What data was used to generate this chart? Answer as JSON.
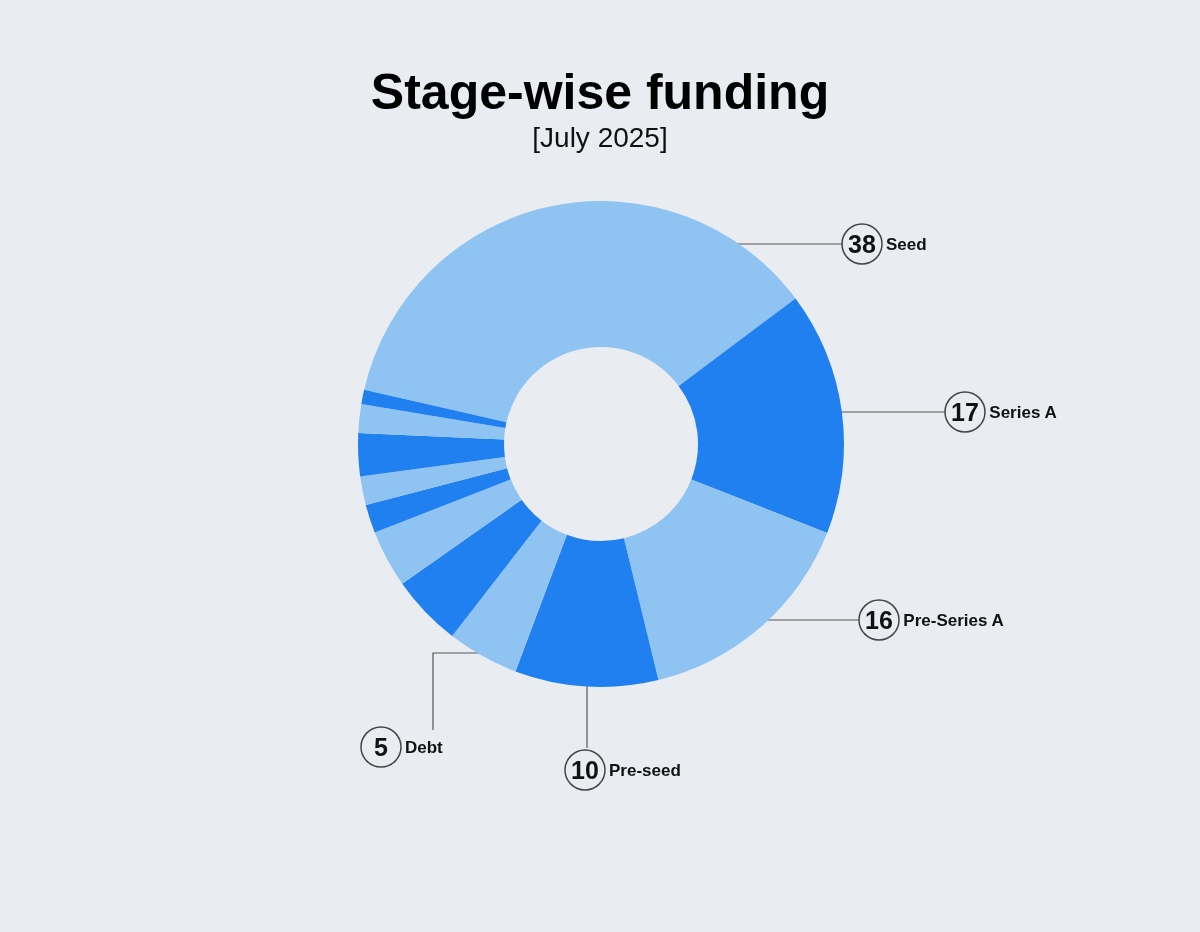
{
  "chart_data": {
    "type": "donut",
    "title": "Stage-wise funding",
    "subtitle": "[July 2025]",
    "categories": [
      "Seed",
      "Series A",
      "Pre-Series A",
      "Pre-seed",
      "Debt",
      null,
      null,
      null,
      null,
      null,
      null,
      null
    ],
    "values": [
      38,
      17,
      16,
      10,
      5,
      5,
      4,
      2,
      2,
      3,
      2,
      1
    ],
    "colors": [
      "#8fc4f2",
      "#2180f0",
      "#8fc4f2",
      "#2180f0",
      "#8fc4f2",
      "#2180f0",
      "#8fc4f2",
      "#2180f0",
      "#8fc4f2",
      "#2180f0",
      "#8fc4f2",
      "#2180f0"
    ],
    "value_labels": [
      "38",
      "17",
      "16",
      "10",
      "5",
      null,
      null,
      null,
      null,
      null,
      null,
      null
    ]
  }
}
